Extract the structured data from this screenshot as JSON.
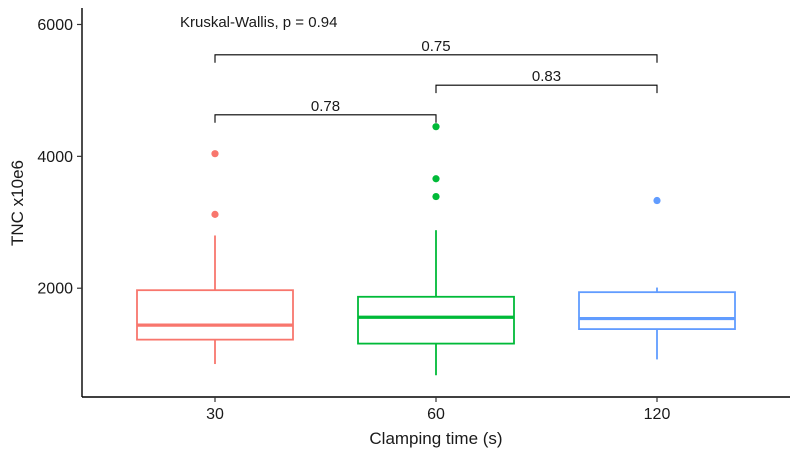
{
  "chart_data": {
    "type": "boxplot",
    "title": "",
    "xlabel": "Clamping time (s)",
    "ylabel": "TNC x10e6",
    "ylim": [
      350,
      6250
    ],
    "yticks": [
      2000,
      4000,
      6000
    ],
    "yticks_text": [
      "2000",
      "4000",
      "6000"
    ],
    "grid": false,
    "legend": "none",
    "annotation": "Kruskal-Wallis, p = 0.94",
    "groups": [
      {
        "category": "30",
        "color": "#F8766D",
        "whisker_low": 850,
        "q1": 1220,
        "median": 1440,
        "q3": 1970,
        "whisker_high": 2800,
        "outliers": [
          3120,
          4040
        ]
      },
      {
        "category": "60",
        "color": "#00BA38",
        "whisker_low": 680,
        "q1": 1160,
        "median": 1560,
        "q3": 1870,
        "whisker_high": 2880,
        "outliers": [
          3390,
          3660,
          4450
        ]
      },
      {
        "category": "120",
        "color": "#619CFF",
        "whisker_low": 920,
        "q1": 1380,
        "median": 1540,
        "q3": 1940,
        "whisker_high": 2010,
        "outliers": [
          3330
        ]
      }
    ],
    "comparisons": [
      {
        "from": 0,
        "to": 1,
        "label": "0.78",
        "y": 4630
      },
      {
        "from": 1,
        "to": 2,
        "label": "0.83",
        "y": 5080
      },
      {
        "from": 0,
        "to": 2,
        "label": "0.75",
        "y": 5540
      }
    ]
  }
}
